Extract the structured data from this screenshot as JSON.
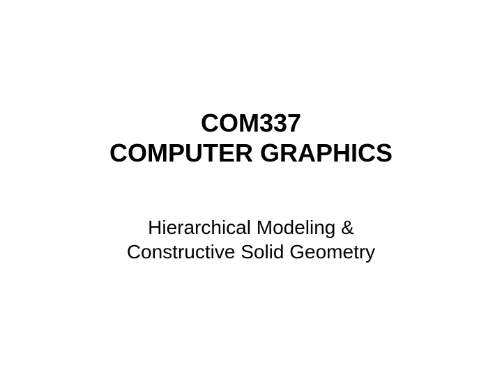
{
  "slide": {
    "title_line1": "COM337",
    "title_line2": "COMPUTER GRAPHICS",
    "subtitle_line1": "Hierarchical Modeling &",
    "subtitle_line2": "Constructive Solid Geometry"
  },
  "styling": {
    "background_color": "#ffffff",
    "text_color": "#000000",
    "title_fontsize": 36,
    "title_fontweight": "bold",
    "subtitle_fontsize": 28,
    "subtitle_fontweight": "normal",
    "font_family": "Arial"
  }
}
